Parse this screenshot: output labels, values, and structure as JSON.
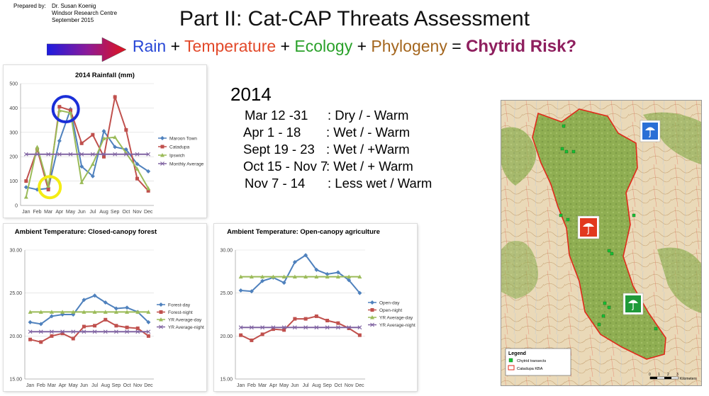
{
  "header": {
    "prepared_label": "Prepared by:",
    "author": "Dr. Susan Koenig",
    "organization": "Windsor Research Centre",
    "date": "September 2015",
    "title": "Part II:  Cat-CAP Threats Assessment"
  },
  "formula": {
    "terms": [
      {
        "text": "Rain",
        "color": "#2747d6"
      },
      {
        "text": "Temperature",
        "color": "#e2492a"
      },
      {
        "text": "Ecology",
        "color": "#2aa12a"
      },
      {
        "text": "Phylogeny",
        "color": "#a4661e"
      }
    ],
    "plus": "+",
    "equals": "=",
    "result": "Chytrid Risk?",
    "result_color": "#8e1f5e"
  },
  "summary": {
    "year": "2014",
    "periods": [
      {
        "range": "Mar 12 -31",
        "condition": ":  Dry /  - Warm"
      },
      {
        "range": "Apr 1 - 18",
        "condition": ":  Wet /  - Warm"
      },
      {
        "range": "Sept 19  - 23",
        "condition": ":  Wet /  +Warm"
      },
      {
        "range": "Oct 15 - Nov 7",
        "condition": ":  Wet / + Warm"
      },
      {
        "range": "Nov 7 - 14",
        "condition": ":  Less wet / Warm"
      }
    ]
  },
  "chart_data": [
    {
      "type": "line",
      "title": "2014 Rainfall (mm)",
      "categories": [
        "Jan",
        "Feb",
        "Mar",
        "Apr",
        "May",
        "Jun",
        "Jul",
        "Aug",
        "Sep",
        "Oct",
        "Nov",
        "Dec"
      ],
      "ylim": [
        0,
        500
      ],
      "yticks": [
        "0",
        "100",
        "200",
        "300",
        "400",
        "500"
      ],
      "legend": "right",
      "series": [
        {
          "name": "Maroon Town",
          "color": "#4f81bd",
          "values": [
            75,
            65,
            70,
            265,
            395,
            160,
            120,
            305,
            240,
            230,
            170,
            140
          ]
        },
        {
          "name": "Catadupa",
          "color": "#c0504d",
          "values": [
            100,
            230,
            65,
            405,
            390,
            255,
            290,
            200,
            445,
            310,
            110,
            60
          ]
        },
        {
          "name": "Ipswich",
          "color": "#9bbb59",
          "values": [
            35,
            240,
            80,
            390,
            380,
            95,
            170,
            275,
            280,
            215,
            150,
            70
          ]
        },
        {
          "name": "Monthly Average",
          "color": "#8064a2",
          "values": [
            210,
            210,
            210,
            210,
            210,
            210,
            210,
            210,
            210,
            210,
            210,
            210
          ]
        }
      ],
      "annotations": [
        "blue circle around Apr-May peak",
        "yellow circle around Mar low"
      ]
    },
    {
      "type": "line",
      "title": "Ambient Temperature: Closed-canopy forest",
      "categories": [
        "Jan",
        "Feb",
        "Mar",
        "Apr",
        "May",
        "Jun",
        "Jul",
        "Aug",
        "Sep",
        "Oct",
        "Nov",
        "Dec"
      ],
      "ylim": [
        15,
        30
      ],
      "yticks": [
        "15.00",
        "20.00",
        "25.00",
        "30.00"
      ],
      "legend": "right",
      "series": [
        {
          "name": "Forest-day",
          "color": "#4f81bd",
          "values": [
            21.6,
            21.4,
            22.3,
            22.5,
            22.5,
            24.2,
            24.7,
            23.9,
            23.2,
            23.3,
            22.8,
            21.6
          ]
        },
        {
          "name": "Forest-night",
          "color": "#c0504d",
          "values": [
            19.6,
            19.3,
            20.0,
            20.3,
            19.7,
            21.1,
            21.2,
            21.9,
            21.2,
            21.0,
            20.9,
            20.0
          ]
        },
        {
          "name": "YR Average-day",
          "color": "#9bbb59",
          "values": [
            22.8,
            22.8,
            22.8,
            22.8,
            22.8,
            22.8,
            22.8,
            22.8,
            22.8,
            22.8,
            22.8,
            22.8
          ]
        },
        {
          "name": "YR Average-night",
          "color": "#8064a2",
          "values": [
            20.5,
            20.5,
            20.5,
            20.5,
            20.5,
            20.5,
            20.5,
            20.5,
            20.5,
            20.5,
            20.5,
            20.5
          ]
        }
      ]
    },
    {
      "type": "line",
      "title": "Ambient Temperature: Open-canopy agriculture",
      "categories": [
        "Jan",
        "Feb",
        "Mar",
        "Apr",
        "May",
        "Jun",
        "Jul",
        "Aug",
        "Sep",
        "Oct",
        "Nov",
        "Dec"
      ],
      "ylim": [
        15,
        30
      ],
      "yticks": [
        "15.00",
        "20.00",
        "25.00",
        "30.00"
      ],
      "legend": "right",
      "series": [
        {
          "name": "Open-day",
          "color": "#4f81bd",
          "values": [
            25.3,
            25.2,
            26.4,
            26.8,
            26.2,
            28.6,
            29.4,
            27.7,
            27.2,
            27.4,
            26.5,
            25.0
          ]
        },
        {
          "name": "Open-night",
          "color": "#c0504d",
          "values": [
            20.1,
            19.5,
            20.2,
            20.8,
            20.7,
            22.0,
            22.0,
            22.3,
            21.8,
            21.5,
            20.9,
            20.1
          ]
        },
        {
          "name": "YR Average-day",
          "color": "#9bbb59",
          "values": [
            26.9,
            26.9,
            26.9,
            26.9,
            26.9,
            26.9,
            26.9,
            26.9,
            26.9,
            26.9,
            26.9,
            26.9
          ]
        },
        {
          "name": "YR Average-night",
          "color": "#8064a2",
          "values": [
            21.0,
            21.0,
            21.0,
            21.0,
            21.0,
            21.0,
            21.0,
            21.0,
            21.0,
            21.0,
            21.0,
            21.0
          ]
        }
      ]
    }
  ],
  "map": {
    "legend_title": "Legend",
    "legend_items": [
      "Chytrid transects",
      "Catadupa KBA"
    ],
    "scale_ticks": [
      "0",
      "1",
      "2",
      "3"
    ],
    "scale_unit": "Kilometers",
    "risk_icons": [
      {
        "name": "blue-umbrella",
        "color": "#2a6fd6"
      },
      {
        "name": "red-umbrella",
        "color": "#e2381f"
      },
      {
        "name": "green-umbrella",
        "color": "#1f9a3a"
      }
    ]
  }
}
